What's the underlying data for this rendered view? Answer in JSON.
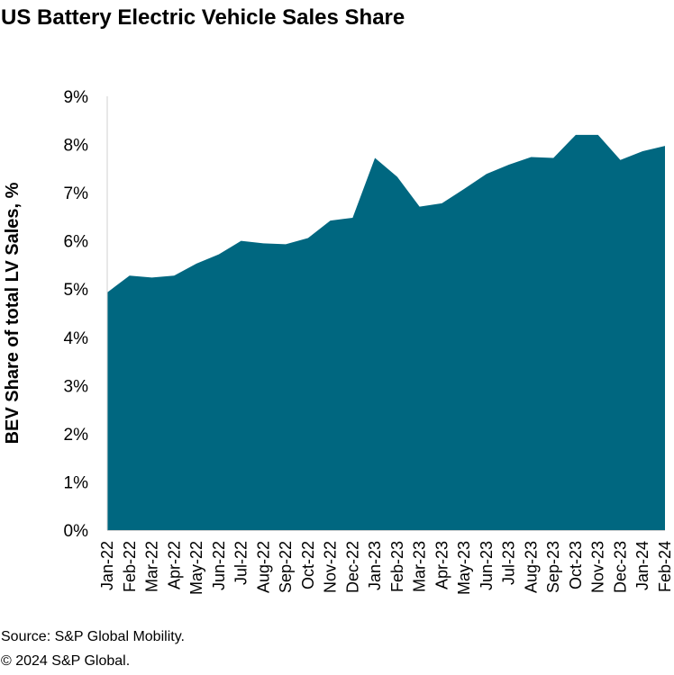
{
  "chart_data": {
    "type": "area",
    "title": "US Battery Electric Vehicle Sales Share",
    "ylabel": "BEV Share of total LV Sales, %",
    "xlabel": "",
    "ylim": [
      0,
      9
    ],
    "yticks": [
      "0%",
      "1%",
      "2%",
      "3%",
      "4%",
      "5%",
      "6%",
      "7%",
      "8%",
      "9%"
    ],
    "categories": [
      "Jan-22",
      "Feb-22",
      "Mar-22",
      "Apr-22",
      "May-22",
      "Jun-22",
      "Jul-22",
      "Aug-22",
      "Sep-22",
      "Oct-22",
      "Nov-22",
      "Dec-22",
      "Jan-23",
      "Feb-23",
      "Mar-23",
      "Apr-23",
      "May-23",
      "Jun-23",
      "Jul-23",
      "Aug-23",
      "Sep-23",
      "Oct-23",
      "Nov-23",
      "Dec-23",
      "Jan-24",
      "Feb-24"
    ],
    "series": [
      {
        "name": "BEV share",
        "color": "#006780",
        "values": [
          4.93,
          5.28,
          5.24,
          5.28,
          5.53,
          5.72,
          6.0,
          5.95,
          5.93,
          6.06,
          6.42,
          6.48,
          7.72,
          7.33,
          6.71,
          6.78,
          7.08,
          7.39,
          7.58,
          7.74,
          7.72,
          8.2,
          8.2,
          7.68,
          7.86,
          7.97
        ]
      }
    ],
    "grid": false,
    "legend": "none"
  },
  "footer": {
    "source": "Source: S&P Global Mobility.",
    "copyright": "© 2024 S&P Global."
  }
}
